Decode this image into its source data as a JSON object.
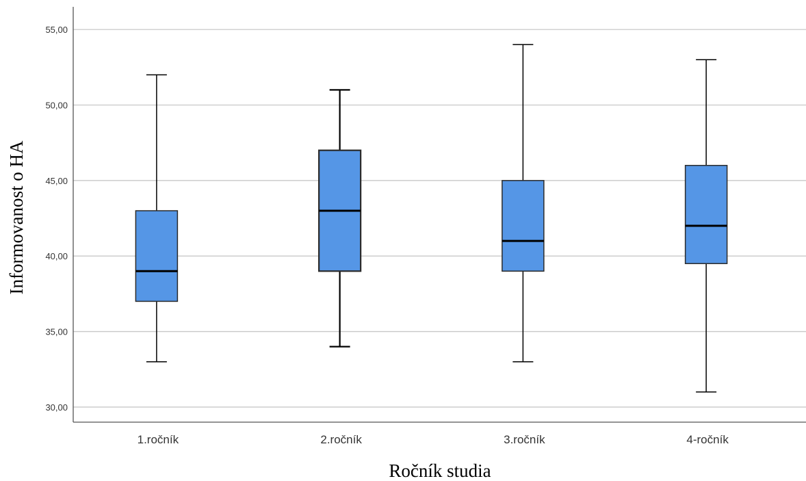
{
  "chart_data": {
    "type": "boxplot",
    "xlabel": "Ročník studia",
    "ylabel": "Informovanost o HA",
    "ylim": [
      29,
      56.5
    ],
    "yticks": [
      30,
      35,
      40,
      45,
      50,
      55
    ],
    "ytick_labels": [
      "30,00",
      "35,00",
      "40,00",
      "45,00",
      "50,00",
      "55,00"
    ],
    "grid": true,
    "box_color": "#5596e6",
    "categories": [
      "1.ročník",
      "2.ročník",
      "3.ročník",
      "4-ročník"
    ],
    "boxes": [
      {
        "min": 33,
        "q1": 37,
        "median": 39,
        "q3": 43,
        "max": 52
      },
      {
        "min": 34,
        "q1": 39,
        "median": 43,
        "q3": 47,
        "max": 51
      },
      {
        "min": 33,
        "q1": 39,
        "median": 41,
        "q3": 45,
        "max": 54
      },
      {
        "min": 31,
        "q1": 39.5,
        "median": 42,
        "q3": 46,
        "max": 53
      }
    ]
  }
}
